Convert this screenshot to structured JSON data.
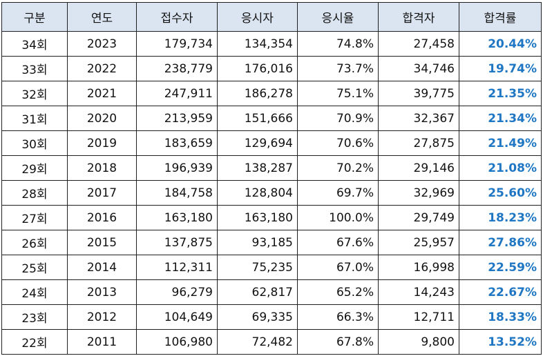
{
  "headers": [
    "구분",
    "연도",
    "접수자",
    "응시자",
    "응시율",
    "합격자",
    "합격률"
  ],
  "rows": [
    {
      "round": "34회",
      "year": "2023",
      "applicants": "179,734",
      "examinees": "134,354",
      "exam_rate": "74.8%",
      "passers": "27,458",
      "pass_rate": "20.44%"
    },
    {
      "round": "33회",
      "year": "2022",
      "applicants": "238,779",
      "examinees": "176,016",
      "exam_rate": "73.7%",
      "passers": "34,746",
      "pass_rate": "19.74%"
    },
    {
      "round": "32회",
      "year": "2021",
      "applicants": "247,911",
      "examinees": "186,278",
      "exam_rate": "75.1%",
      "passers": "39,775",
      "pass_rate": "21.35%"
    },
    {
      "round": "31회",
      "year": "2020",
      "applicants": "213,959",
      "examinees": "151,666",
      "exam_rate": "70.9%",
      "passers": "32,367",
      "pass_rate": "21.34%"
    },
    {
      "round": "30회",
      "year": "2019",
      "applicants": "183,659",
      "examinees": "129,694",
      "exam_rate": "70.6%",
      "passers": "27,875",
      "pass_rate": "21.49%"
    },
    {
      "round": "29회",
      "year": "2018",
      "applicants": "196,939",
      "examinees": "138,287",
      "exam_rate": "70.2%",
      "passers": "29,146",
      "pass_rate": "21.08%"
    },
    {
      "round": "28회",
      "year": "2017",
      "applicants": "184,758",
      "examinees": "128,804",
      "exam_rate": "69.7%",
      "passers": "32,969",
      "pass_rate": "25.60%"
    },
    {
      "round": "27회",
      "year": "2016",
      "applicants": "163,180",
      "examinees": "163,180",
      "exam_rate": "100.0%",
      "passers": "29,749",
      "pass_rate": "18.23%"
    },
    {
      "round": "26회",
      "year": "2015",
      "applicants": "137,875",
      "examinees": "93,185",
      "exam_rate": "67.6%",
      "passers": "25,957",
      "pass_rate": "27.86%"
    },
    {
      "round": "25회",
      "year": "2014",
      "applicants": "112,311",
      "examinees": "75,235",
      "exam_rate": "67.0%",
      "passers": "16,998",
      "pass_rate": "22.59%"
    },
    {
      "round": "24회",
      "year": "2013",
      "applicants": "96,279",
      "examinees": "62,817",
      "exam_rate": "65.2%",
      "passers": "14,243",
      "pass_rate": "22.67%"
    },
    {
      "round": "23회",
      "year": "2012",
      "applicants": "104,649",
      "examinees": "69,335",
      "exam_rate": "66.3%",
      "passers": "12,711",
      "pass_rate": "18.33%"
    },
    {
      "round": "22회",
      "year": "2011",
      "applicants": "106,980",
      "examinees": "72,482",
      "exam_rate": "67.8%",
      "passers": "9,800",
      "pass_rate": "13.52%"
    }
  ],
  "colors": {
    "header_bg": "#dbe5f1",
    "pass_rate_text": "#1f77c4",
    "border": "#1f1f1f"
  }
}
